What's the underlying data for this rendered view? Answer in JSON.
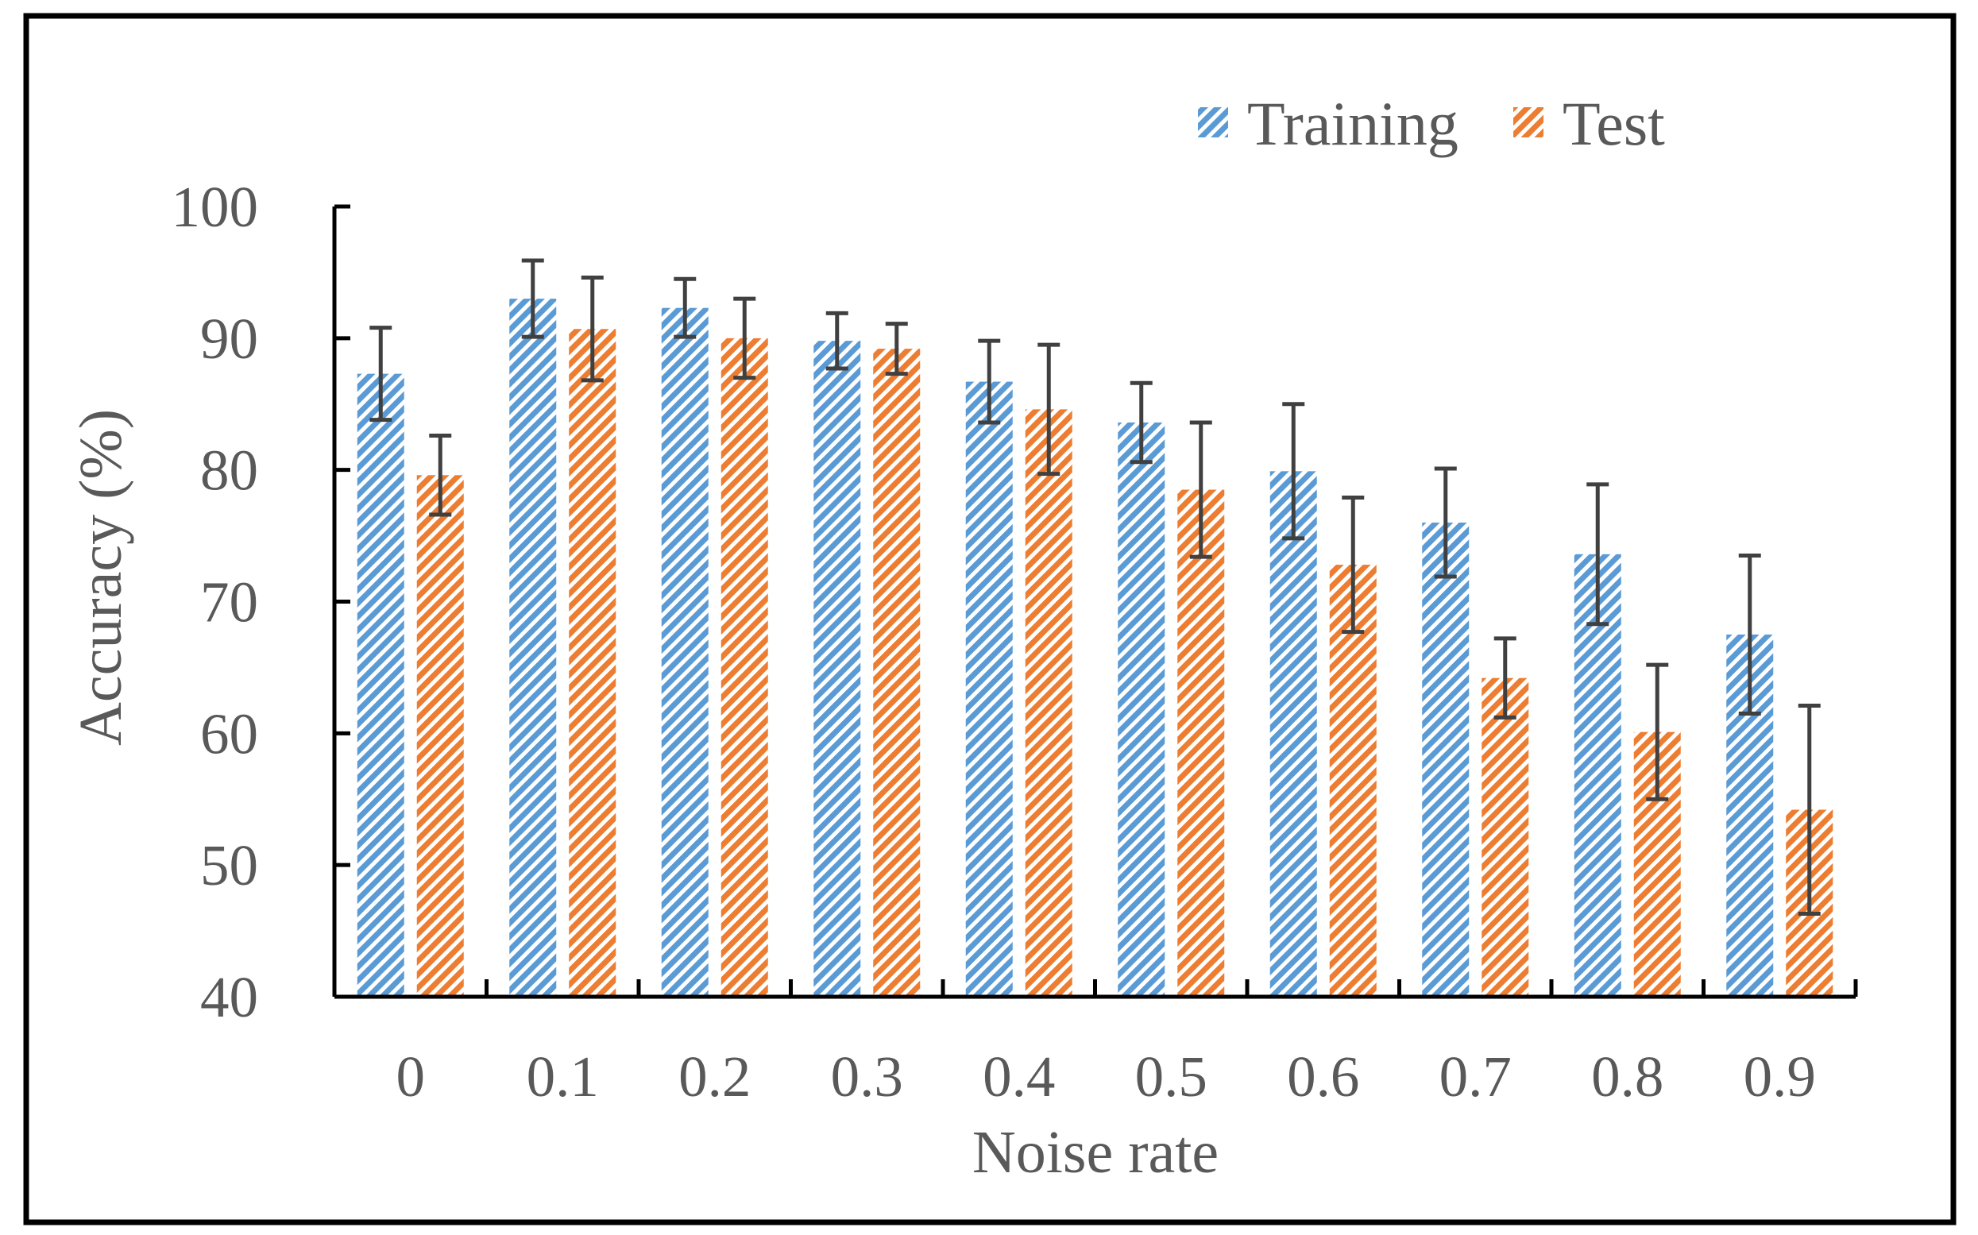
{
  "chart_data": {
    "type": "bar",
    "title": "",
    "xlabel": "Noise rate",
    "ylabel": "Accuracy (%)",
    "ylim": [
      40,
      100
    ],
    "yticks": [
      40,
      50,
      60,
      70,
      80,
      90,
      100
    ],
    "categories": [
      "0",
      "0.1",
      "0.2",
      "0.3",
      "0.4",
      "0.5",
      "0.6",
      "0.7",
      "0.8",
      "0.9"
    ],
    "legend_position": "top-right",
    "series": [
      {
        "name": "Training",
        "color": "#5B9BD5",
        "values": [
          87.3,
          93.0,
          92.3,
          89.8,
          86.7,
          83.6,
          79.9,
          76.0,
          73.6,
          67.5
        ],
        "errors": [
          3.5,
          2.9,
          2.2,
          2.1,
          3.1,
          3.0,
          5.1,
          4.1,
          5.3,
          6.0
        ]
      },
      {
        "name": "Test",
        "color": "#ED7D31",
        "values": [
          79.6,
          90.7,
          90.0,
          89.2,
          84.6,
          78.5,
          72.8,
          64.2,
          60.1,
          54.2
        ],
        "errors": [
          3.0,
          3.9,
          3.0,
          1.9,
          4.9,
          5.1,
          5.1,
          3.0,
          5.1,
          7.9
        ]
      }
    ]
  }
}
